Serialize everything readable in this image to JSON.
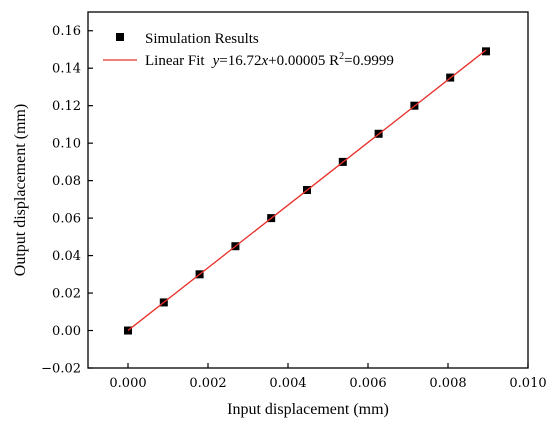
{
  "chart_data": {
    "type": "scatter",
    "xlabel": "Input displacement (mm)",
    "ylabel": "Output displacement (mm)",
    "xlim": [
      -0.001,
      0.01
    ],
    "ylim": [
      -0.02,
      0.17
    ],
    "x_ticks": [
      "0.000",
      "0.002",
      "0.004",
      "0.006",
      "0.008",
      "0.010"
    ],
    "y_ticks": [
      "−0.02",
      "0.00",
      "0.02",
      "0.04",
      "0.06",
      "0.08",
      "0.10",
      "0.12",
      "0.14",
      "0.16"
    ],
    "grid": false,
    "legend_position": "top-left",
    "series": [
      {
        "name": "Simulation Results",
        "kind": "scatter",
        "marker": "square",
        "color": "#000000",
        "x": [
          0.0,
          0.000895,
          0.00179,
          0.002685,
          0.00358,
          0.004475,
          0.00537,
          0.006265,
          0.00716,
          0.008055,
          0.00895
        ],
        "y": [
          0.0,
          0.015,
          0.03,
          0.045,
          0.06,
          0.075,
          0.09,
          0.105,
          0.12,
          0.135,
          0.149
        ]
      },
      {
        "name": "Linear Fit",
        "kind": "line",
        "color": "#e8302a",
        "x": [
          0.0,
          0.00895
        ],
        "y": [
          5e-05,
          0.14969
        ]
      }
    ],
    "legend": {
      "scatter_label": "Simulation Results",
      "fit_label": "Linear Fit",
      "eq_y": "y",
      "eq_mid": "=16.72",
      "eq_x": "x",
      "eq_rest": "+0.00005 R",
      "eq_sup": "2",
      "eq_end": "=0.9999"
    }
  }
}
